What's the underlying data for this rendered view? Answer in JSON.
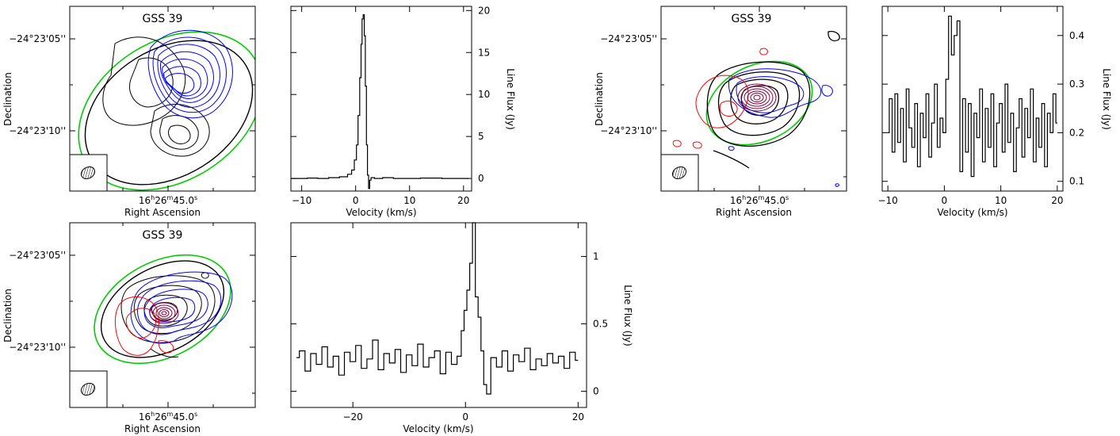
{
  "chart_data": [
    {
      "type": "contour",
      "panel": "map-top-left",
      "title": "GSS 39",
      "xlabel": "Right Ascension",
      "ylabel": "Declination",
      "x_tick_labels": [
        "16h26m45.0s"
      ],
      "y_tick_labels": [
        "−24°23'05''",
        "−24°23'10''"
      ],
      "beam_shown": true,
      "contour_colors": {
        "continuum": "#000000",
        "blue": "#0000ff",
        "red": "#ff0000",
        "ellipse": "#00cc00"
      }
    },
    {
      "type": "line",
      "panel": "spectrum-top-left",
      "xlabel": "Velocity (km/s)",
      "ylabel": "Line Flux (Jy)",
      "xlim": [
        -12,
        21.5
      ],
      "ylim": [
        -1.5,
        20.5
      ],
      "x_ticks": [
        -10,
        0,
        10,
        20
      ],
      "y_ticks": [
        0,
        5,
        10,
        15,
        20
      ],
      "x": [
        -12,
        -10,
        -8,
        -6,
        -4,
        -2,
        -1,
        -0.5,
        0,
        0.3,
        0.6,
        0.9,
        1.1,
        1.3,
        1.5,
        1.7,
        1.9,
        2.1,
        2.3,
        2.5,
        2.7,
        3,
        4,
        6,
        8,
        10,
        14,
        18,
        21
      ],
      "values": [
        0.0,
        0.0,
        0.05,
        0.0,
        0.1,
        0.2,
        0.5,
        1.0,
        2.2,
        4.0,
        7.5,
        12.0,
        16.0,
        19.0,
        19.5,
        17.0,
        11.0,
        4.0,
        0.4,
        -1.2,
        -0.2,
        0.1,
        0.0,
        0.1,
        0.0,
        0.0,
        0.05,
        0.0,
        0.0
      ]
    },
    {
      "type": "contour",
      "panel": "map-top-right",
      "title": "GSS 39",
      "xlabel": "Right Ascension",
      "ylabel": "Declination",
      "x_tick_labels": [
        "16h26m45.0s"
      ],
      "y_tick_labels": [
        "−24°23'05''",
        "−24°23'10''"
      ],
      "beam_shown": true,
      "contour_colors": {
        "continuum": "#000000",
        "blue": "#0000ff",
        "red": "#ff0000",
        "ellipse": "#00cc00"
      }
    },
    {
      "type": "line",
      "panel": "spectrum-top-right",
      "xlabel": "Velocity (km/s)",
      "ylabel": "Line Flux (Jy)",
      "xlim": [
        -11,
        21
      ],
      "ylim": [
        0.08,
        0.46
      ],
      "x_ticks": [
        -10,
        0,
        10,
        20
      ],
      "y_ticks": [
        0.1,
        0.2,
        0.3,
        0.4
      ],
      "x": [
        -10,
        -9.5,
        -9,
        -8.5,
        -8,
        -7.5,
        -7,
        -6.5,
        -6,
        -5.5,
        -5,
        -4.5,
        -4,
        -3.5,
        -3,
        -2.5,
        -2,
        -1.5,
        -1,
        -0.5,
        0,
        0.5,
        1,
        1.5,
        2,
        2.5,
        3,
        3.5,
        4,
        4.5,
        5,
        5.5,
        6,
        6.5,
        7,
        7.5,
        8,
        8.5,
        9,
        9.5,
        10,
        10.5,
        11,
        11.5,
        12,
        12.5,
        13,
        13.5,
        14,
        14.5,
        15,
        15.5,
        16,
        16.5,
        17,
        17.5,
        18,
        18.5,
        19,
        19.5,
        20
      ],
      "values": [
        0.2,
        0.27,
        0.16,
        0.28,
        0.18,
        0.25,
        0.14,
        0.29,
        0.21,
        0.17,
        0.26,
        0.13,
        0.24,
        0.19,
        0.28,
        0.15,
        0.22,
        0.3,
        0.17,
        0.23,
        0.2,
        0.31,
        0.44,
        0.36,
        0.4,
        0.43,
        0.12,
        0.27,
        0.16,
        0.26,
        0.11,
        0.24,
        0.19,
        0.29,
        0.14,
        0.25,
        0.17,
        0.28,
        0.13,
        0.22,
        0.26,
        0.16,
        0.3,
        0.18,
        0.24,
        0.12,
        0.21,
        0.27,
        0.15,
        0.25,
        0.19,
        0.29,
        0.14,
        0.23,
        0.17,
        0.26,
        0.13,
        0.24,
        0.2,
        0.28,
        0.22
      ]
    },
    {
      "type": "contour",
      "panel": "map-bottom-left",
      "title": "GSS 39",
      "xlabel": "Right Ascension",
      "ylabel": "Declination",
      "x_tick_labels": [
        "16h26m45.0s"
      ],
      "y_tick_labels": [
        "−24°23'05''",
        "−24°23'10''"
      ],
      "beam_shown": true,
      "contour_colors": {
        "continuum": "#000000",
        "blue": "#0000ff",
        "red": "#ff0000",
        "ellipse": "#00cc00"
      }
    },
    {
      "type": "line",
      "panel": "spectrum-bottom",
      "xlabel": "Velocity (km/s)",
      "ylabel": "Line Flux (Jy)",
      "xlim": [
        -31,
        21.5
      ],
      "ylim": [
        -0.12,
        1.25
      ],
      "x_ticks": [
        -20,
        0,
        20
      ],
      "y_ticks": [
        0,
        0.5,
        1
      ],
      "x": [
        -30,
        -29,
        -28,
        -27,
        -26,
        -25,
        -24,
        -23,
        -22,
        -21,
        -20,
        -19,
        -18,
        -17,
        -16,
        -15,
        -14,
        -13,
        -12,
        -11,
        -10,
        -9,
        -8,
        -7,
        -6,
        -5,
        -4,
        -3,
        -2,
        -1,
        -0.5,
        0,
        0.5,
        1,
        1.5,
        2,
        2.5,
        3,
        3.5,
        4,
        5,
        6,
        7,
        8,
        9,
        10,
        11,
        12,
        13,
        14,
        15,
        16,
        17,
        18,
        19,
        20
      ],
      "values": [
        0.25,
        0.3,
        0.15,
        0.28,
        0.2,
        0.33,
        0.18,
        0.26,
        0.12,
        0.29,
        0.22,
        0.34,
        0.17,
        0.24,
        0.38,
        0.16,
        0.28,
        0.21,
        0.31,
        0.14,
        0.27,
        0.19,
        0.35,
        0.18,
        0.25,
        0.3,
        0.13,
        0.29,
        0.2,
        0.26,
        0.45,
        0.6,
        0.75,
        0.95,
        1.25,
        0.7,
        0.55,
        0.3,
        0.05,
        -0.02,
        0.25,
        0.18,
        0.3,
        0.15,
        0.27,
        0.22,
        0.32,
        0.16,
        0.24,
        0.19,
        0.28,
        0.21,
        0.26,
        0.17,
        0.29,
        0.23
      ]
    }
  ]
}
